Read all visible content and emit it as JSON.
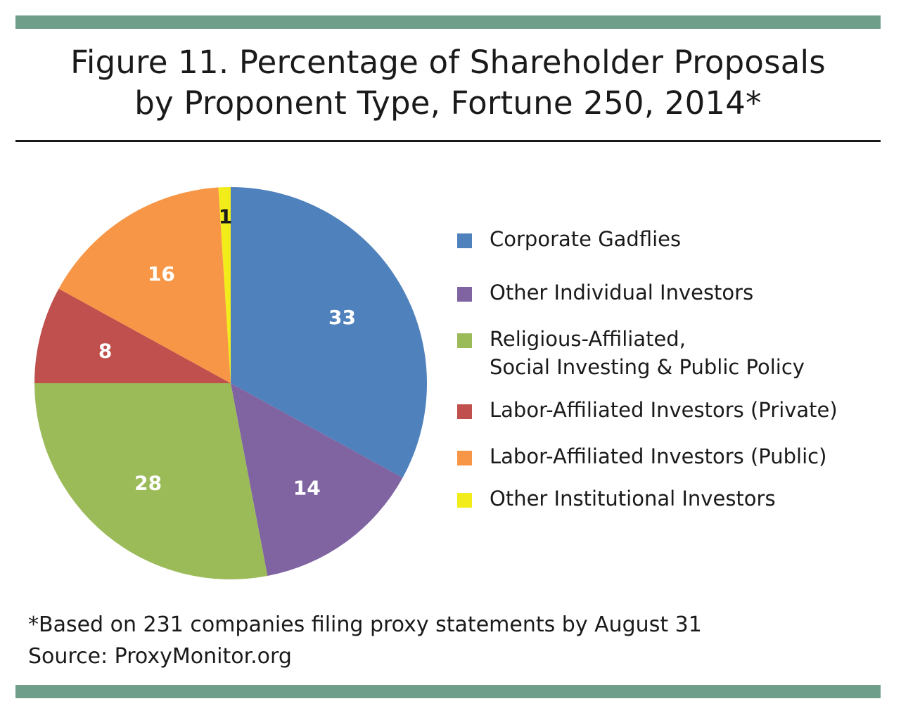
{
  "title": {
    "line1": "Figure 11. Percentage of Shareholder Proposals",
    "line2": "by Proponent Type, Fortune 250, 2014*"
  },
  "chart_data": {
    "type": "pie",
    "title": "Figure 11. Percentage of Shareholder Proposals by Proponent Type, Fortune 250, 2014*",
    "unit": "percent",
    "slices": [
      {
        "label": "Corporate Gadflies",
        "value": 33,
        "color": "#4f81bd",
        "label_color": "#ffffff"
      },
      {
        "label": "Other Individual Investors",
        "value": 14,
        "color": "#8064a2",
        "label_color": "#ffffff"
      },
      {
        "label": "Religious-Affiliated, Social Investing & Public Policy",
        "value": 28,
        "color": "#9bbb59",
        "label_color": "#ffffff"
      },
      {
        "label": "Labor-Affiliated Investors (Private)",
        "value": 8,
        "color": "#c0504d",
        "label_color": "#ffffff"
      },
      {
        "label": "Labor-Affiliated Investors (Public)",
        "value": 16,
        "color": "#f79646",
        "label_color": "#ffffff"
      },
      {
        "label": "Other Institutional Investors",
        "value": 1,
        "color": "#f2ec1a",
        "label_color": "#1a1a1a"
      }
    ],
    "start": "12 o'clock",
    "direction": "clockwise",
    "legend_position": "right"
  },
  "legend": {
    "items": [
      {
        "label": "Corporate Gadflies",
        "color": "#4f81bd"
      },
      {
        "label": "Other Individual Investors",
        "color": "#8064a2"
      },
      {
        "label": "Religious-Affiliated,\nSocial Investing & Public Policy",
        "color": "#9bbb59"
      },
      {
        "label": "Labor-Affiliated Investors (Private)",
        "color": "#c0504d"
      },
      {
        "label": "Labor-Affiliated Investors (Public)",
        "color": "#f79646"
      },
      {
        "label": "Other Institutional Investors",
        "color": "#f2ec1a"
      }
    ]
  },
  "footnote": {
    "line1": "*Based on 231 companies filing proxy statements by August 31",
    "line2": "Source: ProxyMonitor.org"
  },
  "colors": {
    "band": "#6f9e8b",
    "text": "#1a1a1a"
  }
}
